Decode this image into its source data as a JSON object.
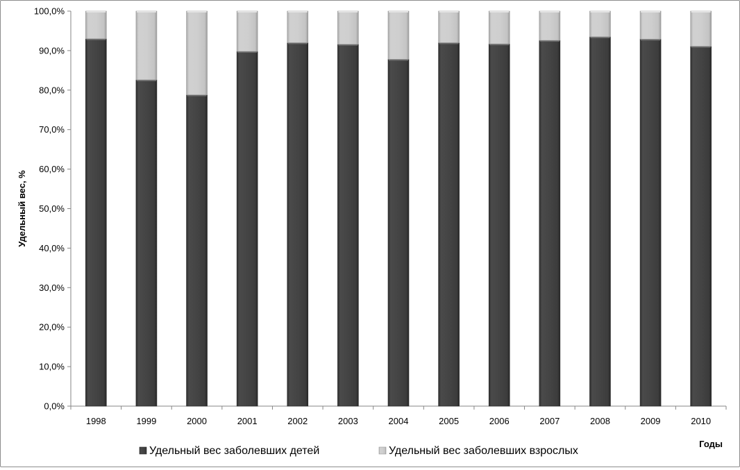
{
  "chart_data": {
    "type": "bar",
    "stacked": true,
    "categories": [
      "1998",
      "1999",
      "2000",
      "2001",
      "2002",
      "2003",
      "2004",
      "2005",
      "2006",
      "2007",
      "2008",
      "2009",
      "2010"
    ],
    "series": [
      {
        "name": "Удельный вес заболевших детей",
        "color": "#404040",
        "values": [
          93.0,
          82.6,
          78.8,
          89.8,
          92.0,
          91.6,
          87.8,
          92.0,
          91.7,
          92.6,
          93.5,
          92.9,
          91.1
        ]
      },
      {
        "name": "Удельный вес заболевших взрослых",
        "color": "#c8c8c8",
        "values": [
          7.0,
          17.4,
          21.2,
          10.2,
          8.0,
          8.4,
          12.2,
          8.0,
          8.3,
          7.4,
          6.5,
          7.1,
          8.9
        ]
      }
    ],
    "ylim": [
      0,
      100
    ],
    "yticks": [
      0,
      10,
      20,
      30,
      40,
      50,
      60,
      70,
      80,
      90,
      100
    ],
    "ytick_labels": [
      "0,0%",
      "10,0%",
      "20,0%",
      "30,0%",
      "40,0%",
      "50,0%",
      "60,0%",
      "70,0%",
      "80,0%",
      "90,0%",
      "100,0%"
    ],
    "ylabel": "Удельный вес, %",
    "xlabel": "Годы",
    "grid": false,
    "legend_position": "bottom"
  }
}
